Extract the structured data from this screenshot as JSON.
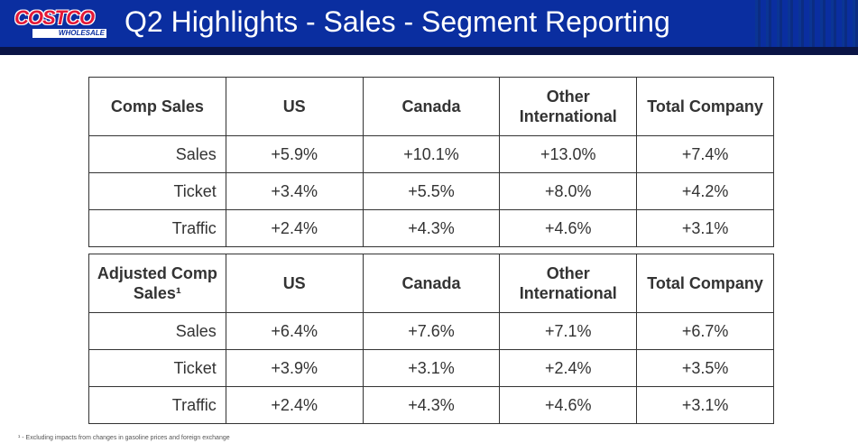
{
  "header": {
    "logo_top": "COSTCO",
    "logo_bottom": "WHOLESALE",
    "title": "Q2 Highlights - Sales - Segment Reporting"
  },
  "tables": [
    {
      "headers": [
        "Comp Sales",
        "US",
        "Canada",
        "Other International",
        "Total Company"
      ],
      "rows": [
        {
          "label": "Sales",
          "values": [
            "+5.9%",
            "+10.1%",
            "+13.0%",
            "+7.4%"
          ]
        },
        {
          "label": "Ticket",
          "values": [
            "+3.4%",
            "+5.5%",
            "+8.0%",
            "+4.2%"
          ]
        },
        {
          "label": "Traffic",
          "values": [
            "+2.4%",
            "+4.3%",
            "+4.6%",
            "+3.1%"
          ]
        }
      ]
    },
    {
      "headers": [
        "Adjusted Comp Sales¹",
        "US",
        "Canada",
        "Other International",
        "Total Company"
      ],
      "rows": [
        {
          "label": "Sales",
          "values": [
            "+6.4%",
            "+7.6%",
            "+7.1%",
            "+6.7%"
          ]
        },
        {
          "label": "Ticket",
          "values": [
            "+3.9%",
            "+3.1%",
            "+2.4%",
            "+3.5%"
          ]
        },
        {
          "label": "Traffic",
          "values": [
            "+2.4%",
            "+4.3%",
            "+4.6%",
            "+3.1%"
          ]
        }
      ]
    }
  ],
  "footnote": "¹ - Excluding impacts from changes in gasoline prices and foreign exchange"
}
